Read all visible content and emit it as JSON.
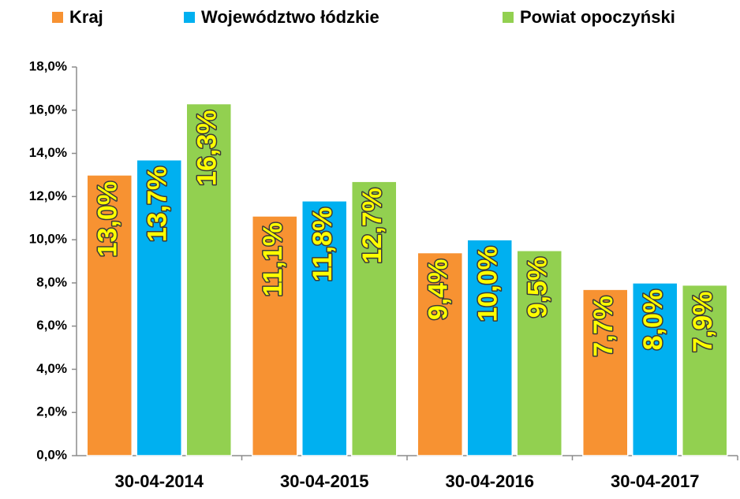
{
  "chart_data": {
    "type": "bar",
    "categories": [
      "30-04-2014",
      "30-04-2015",
      "30-04-2016",
      "30-04-2017"
    ],
    "series": [
      {
        "name": "Kraj",
        "color": "#f79232",
        "values": [
          13.0,
          11.1,
          9.4,
          7.7
        ],
        "value_labels": [
          "13,0%",
          "11,1%",
          "9,4%",
          "7,7%"
        ]
      },
      {
        "name": "Województwo łódzkie",
        "color": "#00b0f0",
        "values": [
          13.7,
          11.8,
          10.0,
          8.0
        ],
        "value_labels": [
          "13,7%",
          "11,8%",
          "10,0%",
          "8,0%"
        ]
      },
      {
        "name": "Powiat opoczyński",
        "color": "#92d050",
        "values": [
          16.3,
          12.7,
          9.5,
          7.9
        ],
        "value_labels": [
          "16,3%",
          "12,7%",
          "9,5%",
          "7,9%"
        ]
      }
    ],
    "ylim": [
      0,
      18
    ],
    "yticks": [
      {
        "value": 0,
        "label": "0,0%"
      },
      {
        "value": 2,
        "label": "2,0%"
      },
      {
        "value": 4,
        "label": "4,0%"
      },
      {
        "value": 6,
        "label": "6,0%"
      },
      {
        "value": 8,
        "label": "8,0%"
      },
      {
        "value": 10,
        "label": "10,0%"
      },
      {
        "value": 12,
        "label": "12,0%"
      },
      {
        "value": 14,
        "label": "14,0%"
      },
      {
        "value": 16,
        "label": "16,0%"
      },
      {
        "value": 18,
        "label": "18,0%"
      }
    ],
    "grid": false,
    "legend": "top"
  }
}
